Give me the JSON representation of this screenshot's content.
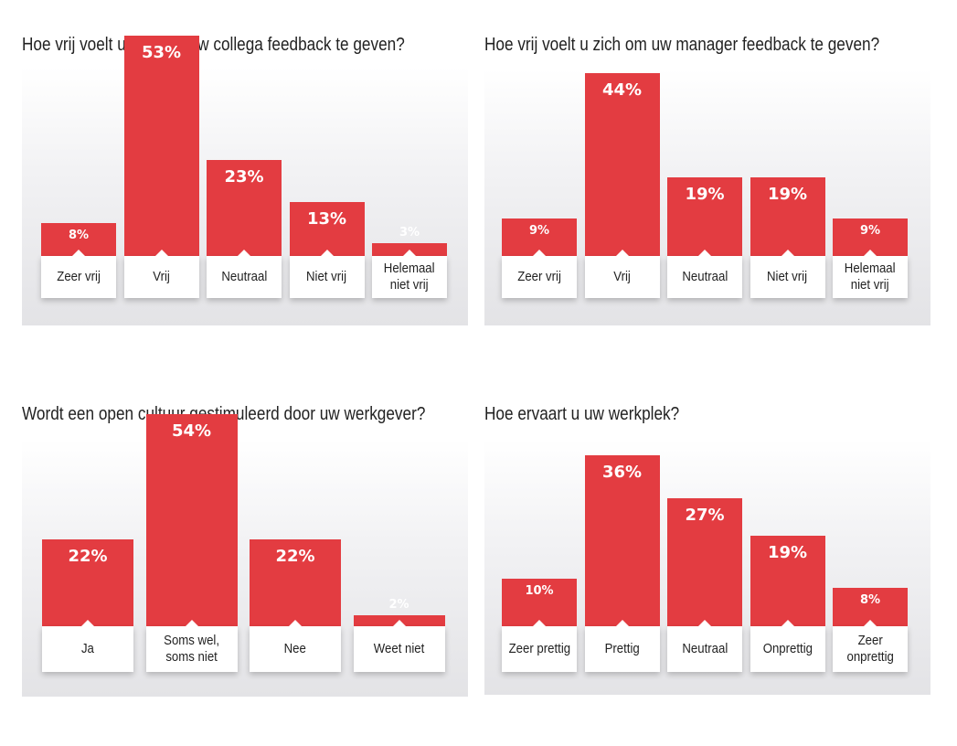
{
  "colors": {
    "bar": "#e33c41",
    "label_bg": "#ffffff",
    "title_text": "#222222"
  },
  "chart_data": [
    {
      "type": "bar",
      "title": "Hoe vrij voelt u zich om uw collega feedback te geven?",
      "categories": [
        "Zeer vrij",
        "Vrij",
        "Neutraal",
        "Niet vrij",
        "Helemaal niet vrij"
      ],
      "values": [
        8,
        53,
        23,
        13,
        3
      ],
      "value_labels": [
        "8%",
        "53%",
        "23%",
        "13%",
        "3%"
      ],
      "unit": "%"
    },
    {
      "type": "bar",
      "title": "Hoe vrij voelt u zich om uw manager feedback te geven?",
      "categories": [
        "Zeer vrij",
        "Vrij",
        "Neutraal",
        "Niet vrij",
        "Helemaal niet vrij"
      ],
      "values": [
        9,
        44,
        19,
        19,
        9
      ],
      "value_labels": [
        "9%",
        "44%",
        "19%",
        "19%",
        "9%"
      ],
      "unit": "%"
    },
    {
      "type": "bar",
      "title": "Wordt een open cultuur gestimuleerd door uw werkgever?",
      "categories": [
        "Ja",
        "Soms wel, soms niet",
        "Nee",
        "Weet niet"
      ],
      "values": [
        22,
        54,
        22,
        2
      ],
      "value_labels": [
        "22%",
        "54%",
        "22%",
        "2%"
      ],
      "unit": "%"
    },
    {
      "type": "bar",
      "title": "Hoe ervaart u uw werkplek?",
      "categories": [
        "Zeer prettig",
        "Prettig",
        "Neutraal",
        "Onprettig",
        "Zeer onprettig"
      ],
      "values": [
        10,
        36,
        27,
        19,
        8
      ],
      "value_labels": [
        "10%",
        "36%",
        "27%",
        "19%",
        "8%"
      ],
      "unit": "%"
    }
  ]
}
